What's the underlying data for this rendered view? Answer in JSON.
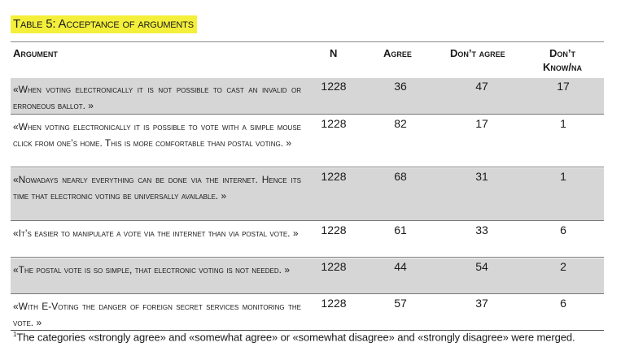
{
  "caption": "Table 5: Acceptance of arguments",
  "headers": {
    "argument": "Argument",
    "n": "N",
    "agree": "Agree",
    "dont_agree": "Don’t agree",
    "dont_know_line1": "Don’t",
    "dont_know_line2": "Know/na"
  },
  "rows": [
    {
      "argument": "«When voting electronically it is not possible to cast an invalid or erroneous ballot. »",
      "n": "1228",
      "agree": "36",
      "dont_agree": "47",
      "dont_know": "17"
    },
    {
      "argument": "«When voting electronically it is possible to vote with a simple mouse click from one’s home. This is more comfortable than postal voting. »",
      "n": "1228",
      "agree": "82",
      "dont_agree": "17",
      "dont_know": "1"
    },
    {
      "argument": "«Nowadays nearly everything can be done via the internet. Hence its time that electronic voting be universally available. »",
      "n": "1228",
      "agree": "68",
      "dont_agree": "31",
      "dont_know": "1"
    },
    {
      "argument": "«It’s easier to manipulate a vote via the internet than via postal vote. »",
      "n": "1228",
      "agree": "61",
      "dont_agree": "33",
      "dont_know": "6"
    },
    {
      "argument": "«The postal vote is so simple, that electronic voting is not needed. »",
      "n": "1228",
      "agree": "44",
      "dont_agree": "54",
      "dont_know": "2"
    },
    {
      "argument": "«With E-Voting the danger of foreign secret services monitoring the vote. »",
      "n": "1228",
      "agree": "57",
      "dont_agree": "37",
      "dont_know": "6"
    }
  ],
  "footnote": {
    "mark": "1",
    "text": "The categories «strongly agree» and «somewhat agree» or «somewhat disagree» and «strongly disagree» were merged."
  }
}
